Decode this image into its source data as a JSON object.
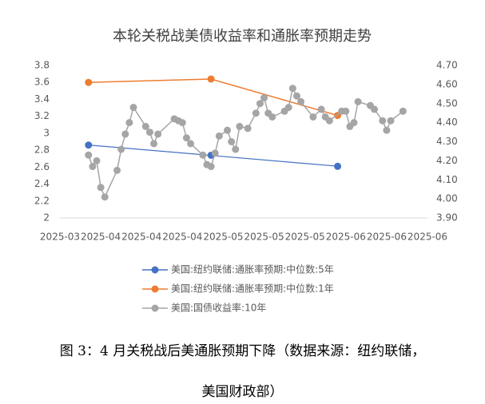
{
  "chart_data": {
    "type": "line",
    "title": "本轮关税战美债收益率和通胀率预期走势",
    "xlim": [
      0,
      90
    ],
    "xticks": [
      {
        "value": 0,
        "label": "2025-03"
      },
      {
        "value": 10,
        "label": "2025-04"
      },
      {
        "value": 20,
        "label": "2025-04"
      },
      {
        "value": 30,
        "label": "2025-04"
      },
      {
        "value": 40,
        "label": "2025-05"
      },
      {
        "value": 50,
        "label": "2025-05"
      },
      {
        "value": 60,
        "label": "2025-05"
      },
      {
        "value": 70,
        "label": "2025-06"
      },
      {
        "value": 80,
        "label": "2025-06"
      },
      {
        "value": 90,
        "label": "2025-06"
      }
    ],
    "ylim": [
      2,
      3.8
    ],
    "yticks": [
      2,
      2.2,
      2.4,
      2.6,
      2.8,
      3,
      3.2,
      3.4,
      3.6,
      3.8
    ],
    "y2lim": [
      3.9,
      4.7
    ],
    "y2ticks": [
      {
        "value": 3.9,
        "label": "3.90"
      },
      {
        "value": 4.0,
        "label": "4.00"
      },
      {
        "value": 4.1,
        "label": "4.10"
      },
      {
        "value": 4.2,
        "label": "4.20"
      },
      {
        "value": 4.3,
        "label": "4.30"
      },
      {
        "value": 4.4,
        "label": "4.40"
      },
      {
        "value": 4.5,
        "label": "4.50"
      },
      {
        "value": 4.6,
        "label": "4.60"
      },
      {
        "value": 4.7,
        "label": "4.70"
      }
    ],
    "legend": "bottom",
    "series": [
      {
        "name": "美国:纽约联储:通胀率预期:中位数:5年",
        "color": "#4472c4",
        "style": "markers",
        "trendline": true,
        "x": [
          7,
          37,
          68
        ],
        "values": [
          2.86,
          2.74,
          2.61
        ]
      },
      {
        "name": "美国:纽约联储:通胀率预期:中位数:1年",
        "color": "#ed7d31",
        "style": "line-markers",
        "x": [
          7,
          37,
          68
        ],
        "values": [
          3.6,
          3.64,
          3.21
        ]
      },
      {
        "name": "美国:国债收益率:10年",
        "color": "#a5a5a5",
        "style": "line-markers",
        "axis": "y2",
        "x": [
          7,
          8,
          9,
          10,
          11,
          14,
          15,
          16,
          17,
          18,
          21,
          22,
          23,
          24,
          28,
          29,
          30,
          31,
          32,
          35,
          36,
          37,
          38,
          39,
          41,
          42,
          43,
          44,
          46,
          48,
          49,
          50,
          51,
          52,
          55,
          56,
          57,
          58,
          59,
          62,
          64,
          65,
          66,
          69,
          70,
          71,
          72,
          73,
          76,
          77,
          79,
          80,
          81,
          84
        ],
        "values": [
          4.23,
          4.17,
          4.2,
          4.06,
          4.01,
          4.15,
          4.26,
          4.34,
          4.4,
          4.48,
          4.38,
          4.35,
          4.29,
          4.34,
          4.42,
          4.41,
          4.4,
          4.32,
          4.29,
          4.23,
          4.18,
          4.17,
          4.24,
          4.33,
          4.36,
          4.3,
          4.26,
          4.38,
          4.37,
          4.45,
          4.5,
          4.53,
          4.45,
          4.43,
          4.46,
          4.48,
          4.58,
          4.54,
          4.51,
          4.43,
          4.47,
          4.43,
          4.41,
          4.46,
          4.46,
          4.38,
          4.4,
          4.51,
          4.49,
          4.47,
          4.41,
          4.36,
          4.41,
          4.46
        ]
      }
    ]
  },
  "caption": {
    "line1": "图 3：4 月关税战后美通胀预期下降（数据来源：纽约联储，",
    "line2": "美国财政部）"
  }
}
